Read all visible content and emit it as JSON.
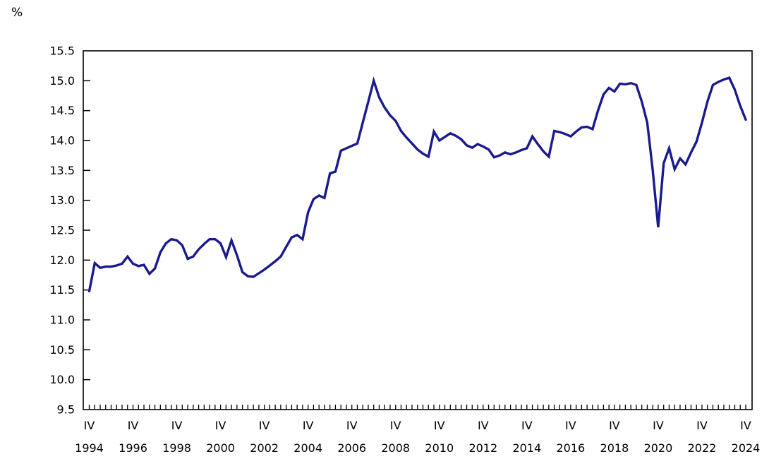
{
  "chart": {
    "unit_label": "%",
    "line_color": "#1a1a8f",
    "axis_color": "#000000",
    "text_color": "#000000",
    "background": "#ffffff"
  },
  "chart_data": {
    "type": "line",
    "title": "",
    "xlabel": "",
    "ylabel": "%",
    "ylim": [
      9.5,
      15.5
    ],
    "ytick_step": 0.5,
    "grid": false,
    "legend": null,
    "y_tick_labels": [
      "9.5",
      "10.0",
      "10.5",
      "11.0",
      "11.5",
      "12.0",
      "12.5",
      "13.0",
      "13.5",
      "14.0",
      "14.5",
      "15.0",
      "15.5"
    ],
    "x_major_every": 8,
    "x_major_labels": [
      {
        "quarter": "IV",
        "year": "1994"
      },
      {
        "quarter": "IV",
        "year": "1996"
      },
      {
        "quarter": "IV",
        "year": "1998"
      },
      {
        "quarter": "IV",
        "year": "2000"
      },
      {
        "quarter": "IV",
        "year": "2002"
      },
      {
        "quarter": "IV",
        "year": "2004"
      },
      {
        "quarter": "IV",
        "year": "2006"
      },
      {
        "quarter": "IV",
        "year": "2008"
      },
      {
        "quarter": "IV",
        "year": "2010"
      },
      {
        "quarter": "IV",
        "year": "2012"
      },
      {
        "quarter": "IV",
        "year": "2014"
      },
      {
        "quarter": "IV",
        "year": "2016"
      },
      {
        "quarter": "IV",
        "year": "2018"
      },
      {
        "quarter": "IV",
        "year": "2020"
      },
      {
        "quarter": "IV",
        "year": "2022"
      },
      {
        "quarter": "IV",
        "year": "2024"
      }
    ],
    "categories": [
      "1994Q4",
      "1995Q1",
      "1995Q2",
      "1995Q3",
      "1995Q4",
      "1996Q1",
      "1996Q2",
      "1996Q3",
      "1996Q4",
      "1997Q1",
      "1997Q2",
      "1997Q3",
      "1997Q4",
      "1998Q1",
      "1998Q2",
      "1998Q3",
      "1998Q4",
      "1999Q1",
      "1999Q2",
      "1999Q3",
      "1999Q4",
      "2000Q1",
      "2000Q2",
      "2000Q3",
      "2000Q4",
      "2001Q1",
      "2001Q2",
      "2001Q3",
      "2001Q4",
      "2002Q1",
      "2002Q2",
      "2002Q3",
      "2002Q4",
      "2003Q1",
      "2003Q2",
      "2003Q3",
      "2003Q4",
      "2004Q1",
      "2004Q2",
      "2004Q3",
      "2004Q4",
      "2005Q1",
      "2005Q2",
      "2005Q3",
      "2005Q4",
      "2006Q1",
      "2006Q2",
      "2006Q3",
      "2006Q4",
      "2007Q1",
      "2007Q2",
      "2007Q3",
      "2007Q4",
      "2008Q1",
      "2008Q2",
      "2008Q3",
      "2008Q4",
      "2009Q1",
      "2009Q2",
      "2009Q3",
      "2009Q4",
      "2010Q1",
      "2010Q2",
      "2010Q3",
      "2010Q4",
      "2011Q1",
      "2011Q2",
      "2011Q3",
      "2011Q4",
      "2012Q1",
      "2012Q2",
      "2012Q3",
      "2012Q4",
      "2013Q1",
      "2013Q2",
      "2013Q3",
      "2013Q4",
      "2014Q1",
      "2014Q2",
      "2014Q3",
      "2014Q4",
      "2015Q1",
      "2015Q2",
      "2015Q3",
      "2015Q4",
      "2016Q1",
      "2016Q2",
      "2016Q3",
      "2016Q4",
      "2017Q1",
      "2017Q2",
      "2017Q3",
      "2017Q4",
      "2018Q1",
      "2018Q2",
      "2018Q3",
      "2018Q4",
      "2019Q1",
      "2019Q2",
      "2019Q3",
      "2019Q4",
      "2020Q1",
      "2020Q2",
      "2020Q3",
      "2020Q4",
      "2021Q1",
      "2021Q2",
      "2021Q3",
      "2021Q4",
      "2022Q1",
      "2022Q2",
      "2022Q3",
      "2022Q4",
      "2023Q1",
      "2023Q2",
      "2023Q3",
      "2023Q4",
      "2024Q1",
      "2024Q2",
      "2024Q3",
      "2024Q4"
    ],
    "values": [
      11.48,
      11.95,
      11.87,
      11.89,
      11.89,
      11.91,
      11.94,
      12.06,
      11.94,
      11.9,
      11.92,
      11.77,
      11.86,
      12.13,
      12.28,
      12.35,
      12.33,
      12.25,
      12.02,
      12.06,
      12.18,
      12.27,
      12.35,
      12.35,
      12.28,
      12.05,
      12.33,
      12.08,
      11.8,
      11.73,
      11.72,
      11.78,
      11.84,
      11.91,
      11.98,
      12.06,
      12.22,
      12.38,
      12.42,
      12.35,
      12.8,
      13.02,
      13.08,
      13.04,
      13.45,
      13.48,
      13.83,
      13.87,
      13.91,
      13.95,
      14.3,
      14.65,
      15.0,
      14.72,
      14.55,
      14.42,
      14.33,
      14.16,
      14.05,
      13.95,
      13.85,
      13.78,
      13.73,
      14.15,
      14.0,
      14.06,
      14.12,
      14.08,
      14.02,
      13.92,
      13.88,
      13.94,
      13.9,
      13.85,
      13.72,
      13.75,
      13.8,
      13.77,
      13.8,
      13.84,
      13.87,
      14.07,
      13.94,
      13.82,
      13.73,
      14.16,
      14.14,
      14.11,
      14.07,
      14.15,
      14.22,
      14.23,
      14.19,
      14.5,
      14.77,
      14.88,
      14.82,
      14.95,
      14.94,
      14.96,
      14.93,
      14.65,
      14.3,
      13.5,
      12.55,
      13.62,
      13.87,
      13.52,
      13.7,
      13.6,
      13.8,
      13.98,
      14.3,
      14.65,
      14.93,
      14.98,
      15.02,
      15.05,
      14.85,
      14.58,
      14.35
    ]
  }
}
